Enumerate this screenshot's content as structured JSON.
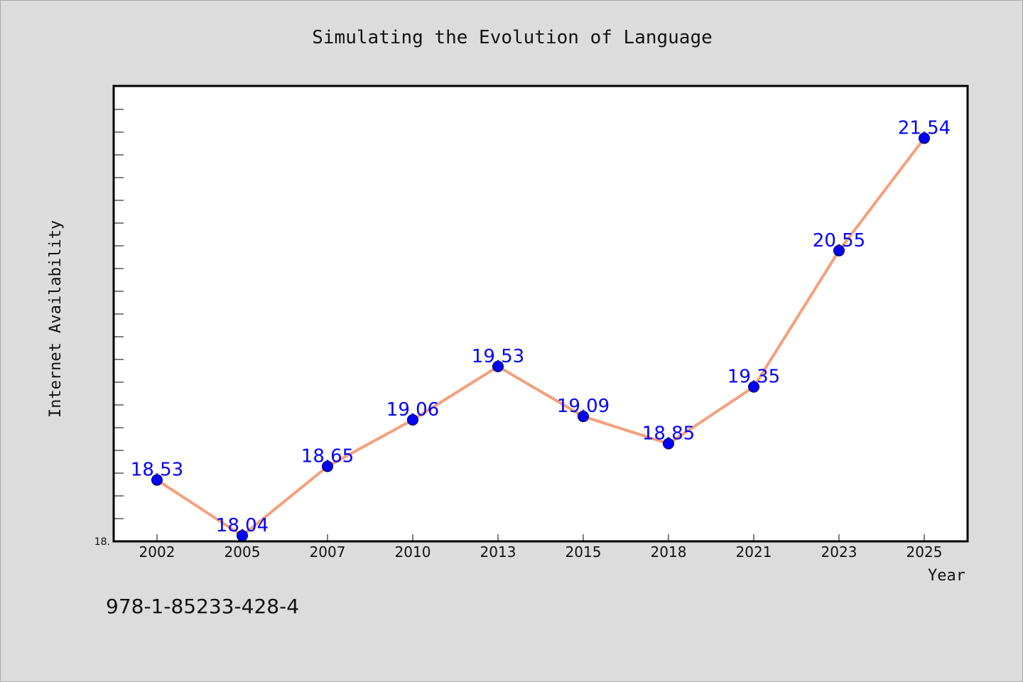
{
  "chart_data": {
    "type": "line",
    "title": "Simulating the Evolution of Language",
    "xlabel": "Year",
    "ylabel": "Internet Availability",
    "categories": [
      "2002",
      "2005",
      "2007",
      "2010",
      "2013",
      "2015",
      "2018",
      "2021",
      "2023",
      "2025"
    ],
    "series": [
      {
        "values": [
          18.53,
          18.04,
          18.65,
          19.06,
          19.53,
          19.09,
          18.85,
          19.35,
          20.55,
          21.54
        ]
      }
    ],
    "data_labels": [
      "18.53",
      "18.04",
      "18.65",
      "19.06",
      "19.53",
      "19.09",
      "18.85",
      "19.35",
      "20.55",
      "21.54"
    ],
    "y_tick_labels": [
      "18."
    ],
    "ylim": [
      17.99,
      22.0
    ],
    "grid": false,
    "legend": "none",
    "colors": {
      "line": "#f4a07c",
      "marker": "#0000ff",
      "data_label": "#0000ff",
      "plot_background": "#ffffff",
      "figure_background": "#dcdcdc"
    }
  },
  "footer": {
    "isbn": "978-1-85233-428-4"
  }
}
